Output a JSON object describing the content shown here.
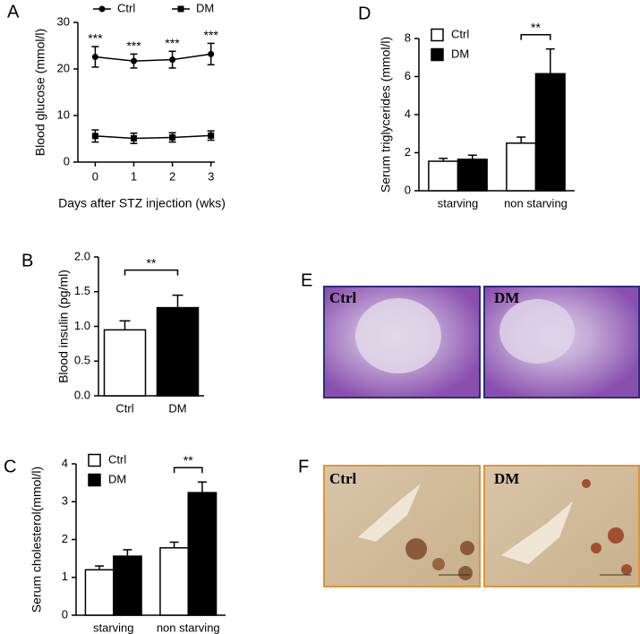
{
  "chart_data": [
    {
      "type": "line",
      "panel": "A",
      "ylabel": "Blood glucose (mmol/l)",
      "xlabel": "Days after STZ injection (wks)",
      "x": [
        0,
        1,
        2,
        3
      ],
      "xlim": [
        -0.45,
        3.1
      ],
      "xticks": [
        0,
        1,
        2,
        3
      ],
      "ylim": [
        0,
        30
      ],
      "yticks": [
        0,
        10,
        20,
        30
      ],
      "legend": "top",
      "series": [
        {
          "name": "Ctrl",
          "color": "#000000",
          "marker": "circle",
          "values": [
            22.6,
            21.7,
            22.0,
            23.2
          ],
          "errors": [
            2.2,
            1.5,
            1.8,
            2.3
          ]
        },
        {
          "name": "DM",
          "color": "#000000",
          "marker": "square",
          "values": [
            5.6,
            5.1,
            5.3,
            5.7
          ],
          "errors": [
            1.3,
            1.1,
            1.0,
            1.0
          ]
        }
      ],
      "significance": [
        "***",
        "***",
        "***",
        "***"
      ]
    },
    {
      "type": "bar",
      "panel": "B",
      "ylabel": "Blood insulin (pg/ml)",
      "categories": [
        "Ctrl",
        "DM"
      ],
      "values": [
        0.95,
        1.27
      ],
      "errors": [
        0.13,
        0.18
      ],
      "colors": [
        "#ffffff",
        "#000000"
      ],
      "ylim": [
        0,
        2
      ],
      "yticks": [
        {
          "value": 0,
          "label": "0.0"
        },
        {
          "value": 0.5,
          "label": "0.5"
        },
        {
          "value": 1,
          "label": "1.0"
        },
        {
          "value": 1.5,
          "label": "1.5"
        },
        {
          "value": 2,
          "label": "2.0"
        }
      ],
      "significance": "**"
    },
    {
      "type": "bar",
      "panel": "C",
      "ylabel": "Serum cholesterol(mmol/l)",
      "categories": [
        "starving",
        "non starving"
      ],
      "series": [
        {
          "name": "Ctrl",
          "color": "#ffffff",
          "values": [
            1.2,
            1.78
          ],
          "errors": [
            0.1,
            0.15
          ]
        },
        {
          "name": "DM",
          "color": "#000000",
          "values": [
            1.56,
            3.24
          ],
          "errors": [
            0.17,
            0.28
          ]
        }
      ],
      "ylim": [
        0,
        4
      ],
      "yticks": [
        0,
        1,
        2,
        3,
        4
      ],
      "legend": "upper left",
      "significance": [
        null,
        "**"
      ]
    },
    {
      "type": "bar",
      "panel": "D",
      "ylabel": "Serum triglycerides (mmol/l)",
      "categories": [
        "starving",
        "non starving"
      ],
      "series": [
        {
          "name": "Ctrl",
          "color": "#ffffff",
          "values": [
            1.55,
            2.5
          ],
          "errors": [
            0.15,
            0.32
          ]
        },
        {
          "name": "DM",
          "color": "#000000",
          "values": [
            1.65,
            6.15
          ],
          "errors": [
            0.22,
            1.3
          ]
        }
      ],
      "ylim": [
        0,
        8
      ],
      "yticks": [
        0,
        2,
        4,
        6,
        8
      ],
      "legend": "upper left",
      "significance": [
        null,
        "**"
      ]
    }
  ],
  "images": [
    {
      "panel": "E",
      "labels": [
        "Ctrl",
        "DM"
      ]
    },
    {
      "panel": "F",
      "labels": [
        "Ctrl",
        "DM"
      ]
    }
  ]
}
